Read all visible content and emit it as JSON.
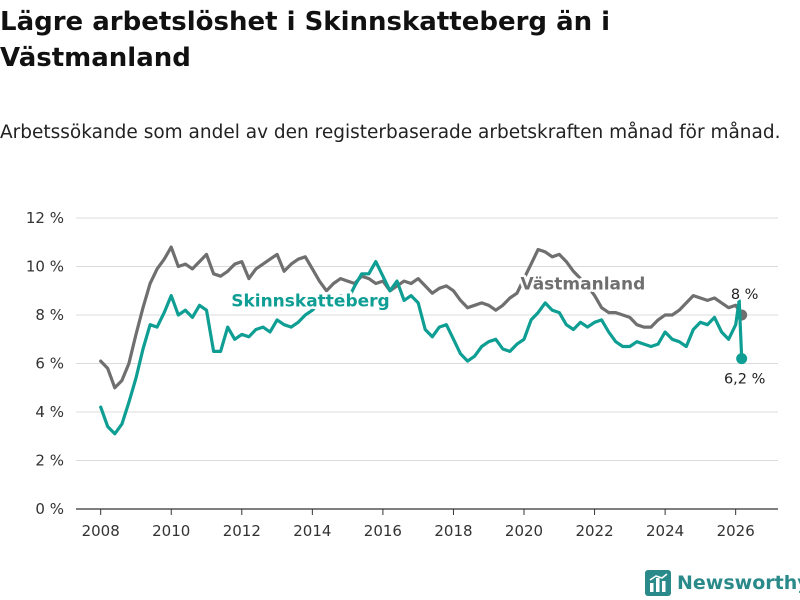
{
  "title": "Lägre arbetslöshet i Skinnskatteberg än i Västmanland",
  "subtitle": "Arbetssökande som andel av den registerbaserade arbetskraften månad för månad.",
  "brand": {
    "name": "Newsworthy",
    "icon": "bar-chart-logo-icon"
  },
  "chart_data": {
    "type": "line",
    "xlabel": "",
    "ylabel": "",
    "xlim": [
      2007.3,
      2027.2
    ],
    "ylim": [
      0,
      12
    ],
    "grid": true,
    "y_ticks": [
      {
        "value": 0,
        "label": "0 %"
      },
      {
        "value": 2,
        "label": "2 %"
      },
      {
        "value": 4,
        "label": "4 %"
      },
      {
        "value": 6,
        "label": "6 %"
      },
      {
        "value": 8,
        "label": "8 %"
      },
      {
        "value": 10,
        "label": "10 %"
      },
      {
        "value": 12,
        "label": "12 %"
      }
    ],
    "x_ticks": [
      {
        "value": 2008,
        "label": "2008"
      },
      {
        "value": 2010,
        "label": "2010"
      },
      {
        "value": 2012,
        "label": "2012"
      },
      {
        "value": 2014,
        "label": "2014"
      },
      {
        "value": 2016,
        "label": "2016"
      },
      {
        "value": 2018,
        "label": "2018"
      },
      {
        "value": 2020,
        "label": "2020"
      },
      {
        "value": 2022,
        "label": "2022"
      },
      {
        "value": 2024,
        "label": "2024"
      },
      {
        "value": 2026,
        "label": "2026"
      }
    ],
    "series": [
      {
        "name": "Västmanland",
        "color": "#6f6f6f",
        "label_at": {
          "x": 2019.9,
          "y": 9.05
        },
        "end_label": "8 %",
        "x": [
          2008.0,
          2008.2,
          2008.4,
          2008.6,
          2008.8,
          2009.0,
          2009.2,
          2009.4,
          2009.6,
          2009.8,
          2010.0,
          2010.2,
          2010.4,
          2010.6,
          2010.8,
          2011.0,
          2011.2,
          2011.4,
          2011.6,
          2011.8,
          2012.0,
          2012.2,
          2012.4,
          2012.6,
          2012.8,
          2013.0,
          2013.2,
          2013.4,
          2013.6,
          2013.8,
          2014.0,
          2014.2,
          2014.4,
          2014.6,
          2014.8,
          2015.0,
          2015.2,
          2015.4,
          2015.6,
          2015.8,
          2016.0,
          2016.2,
          2016.4,
          2016.6,
          2016.8,
          2017.0,
          2017.2,
          2017.4,
          2017.6,
          2017.8,
          2018.0,
          2018.2,
          2018.4,
          2018.6,
          2018.8,
          2019.0,
          2019.2,
          2019.4,
          2019.6,
          2019.8,
          2020.0,
          2020.2,
          2020.4,
          2020.6,
          2020.8,
          2021.0,
          2021.2,
          2021.4,
          2021.6,
          2021.8,
          2022.0,
          2022.2,
          2022.4,
          2022.6,
          2022.8,
          2023.0,
          2023.2,
          2023.4,
          2023.6,
          2023.8,
          2024.0,
          2024.2,
          2024.4,
          2024.6,
          2024.8,
          2025.0,
          2025.2,
          2025.4,
          2025.6,
          2025.8,
          2026.0,
          2026.17
        ],
        "y": [
          6.1,
          5.8,
          5.0,
          5.3,
          6.0,
          7.2,
          8.3,
          9.3,
          9.9,
          10.3,
          10.8,
          10.0,
          10.1,
          9.9,
          10.2,
          10.5,
          9.7,
          9.6,
          9.8,
          10.1,
          10.2,
          9.5,
          9.9,
          10.1,
          10.3,
          10.5,
          9.8,
          10.1,
          10.3,
          10.4,
          9.9,
          9.4,
          9.0,
          9.3,
          9.5,
          9.4,
          9.3,
          9.6,
          9.5,
          9.3,
          9.4,
          9.0,
          9.2,
          9.4,
          9.3,
          9.5,
          9.2,
          8.9,
          9.1,
          9.2,
          9.0,
          8.6,
          8.3,
          8.4,
          8.5,
          8.4,
          8.2,
          8.4,
          8.7,
          8.9,
          9.5,
          10.1,
          10.7,
          10.6,
          10.4,
          10.5,
          10.2,
          9.8,
          9.5,
          9.2,
          8.8,
          8.3,
          8.1,
          8.1,
          8.0,
          7.9,
          7.6,
          7.5,
          7.5,
          7.8,
          8.0,
          8.0,
          8.2,
          8.5,
          8.8,
          8.7,
          8.6,
          8.7,
          8.5,
          8.3,
          8.4,
          8.0
        ]
      },
      {
        "name": "Skinnskatteberg",
        "color": "#0e9e93",
        "label_at": {
          "x": 2011.7,
          "y": 8.35
        },
        "end_label": "6,2 %",
        "x": [
          2008.0,
          2008.2,
          2008.4,
          2008.6,
          2008.8,
          2009.0,
          2009.2,
          2009.4,
          2009.6,
          2009.8,
          2010.0,
          2010.2,
          2010.4,
          2010.6,
          2010.8,
          2011.0,
          2011.2,
          2011.4,
          2011.6,
          2011.8,
          2012.0,
          2012.2,
          2012.4,
          2012.6,
          2012.8,
          2013.0,
          2013.2,
          2013.4,
          2013.6,
          2013.8,
          2014.0,
          2014.2,
          2014.4,
          2014.6,
          2014.8,
          2015.0,
          2015.2,
          2015.4,
          2015.6,
          2015.8,
          2016.0,
          2016.2,
          2016.4,
          2016.6,
          2016.8,
          2017.0,
          2017.2,
          2017.4,
          2017.6,
          2017.8,
          2018.0,
          2018.2,
          2018.4,
          2018.6,
          2018.8,
          2019.0,
          2019.2,
          2019.4,
          2019.6,
          2019.8,
          2020.0,
          2020.2,
          2020.4,
          2020.6,
          2020.8,
          2021.0,
          2021.2,
          2021.4,
          2021.6,
          2021.8,
          2022.0,
          2022.2,
          2022.4,
          2022.6,
          2022.8,
          2023.0,
          2023.2,
          2023.4,
          2023.6,
          2023.8,
          2024.0,
          2024.2,
          2024.4,
          2024.6,
          2024.8,
          2025.0,
          2025.2,
          2025.4,
          2025.6,
          2025.8,
          2026.0,
          2026.1,
          2026.17
        ],
        "y": [
          4.2,
          3.4,
          3.1,
          3.5,
          4.4,
          5.4,
          6.6,
          7.6,
          7.5,
          8.1,
          8.8,
          8.0,
          8.2,
          7.9,
          8.4,
          8.2,
          6.5,
          6.5,
          7.5,
          7.0,
          7.2,
          7.1,
          7.4,
          7.5,
          7.3,
          7.8,
          7.6,
          7.5,
          7.7,
          8.0,
          8.2,
          8.5,
          8.4,
          8.6,
          8.8,
          8.6,
          9.2,
          9.7,
          9.7,
          10.2,
          9.6,
          9.0,
          9.4,
          8.6,
          8.8,
          8.5,
          7.4,
          7.1,
          7.5,
          7.6,
          7.0,
          6.4,
          6.1,
          6.3,
          6.7,
          6.9,
          7.0,
          6.6,
          6.5,
          6.8,
          7.0,
          7.8,
          8.1,
          8.5,
          8.2,
          8.1,
          7.6,
          7.4,
          7.7,
          7.5,
          7.7,
          7.8,
          7.3,
          6.9,
          6.7,
          6.7,
          6.9,
          6.8,
          6.7,
          6.8,
          7.3,
          7.0,
          6.9,
          6.7,
          7.4,
          7.7,
          7.6,
          7.9,
          7.3,
          7.0,
          7.6,
          8.6,
          6.2
        ]
      }
    ]
  }
}
